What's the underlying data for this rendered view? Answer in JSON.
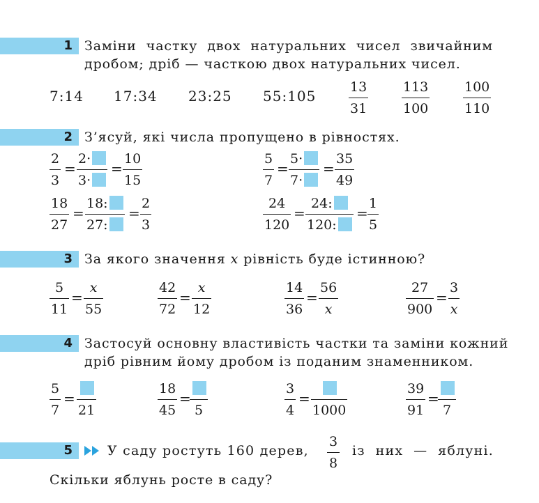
{
  "tasks": [
    {
      "number": "1",
      "lines": [
        "Заміни частку двох натуральних чисел звичайним",
        "дробом; дріб — часткою двох натуральних чисел."
      ],
      "ratios": [
        "7:14",
        "17:34",
        "23:25",
        "55:105"
      ],
      "fractions": [
        {
          "num": "13",
          "den": "31"
        },
        {
          "num": "113",
          "den": "100"
        },
        {
          "num": "100",
          "den": "110"
        }
      ]
    },
    {
      "number": "2",
      "lines": [
        "З’ясуй, які числа пропущено в рівностях."
      ],
      "equations": [
        {
          "a_num": "2",
          "a_den": "3",
          "m_num": "2·",
          "m_den": "3·",
          "b_num": "10",
          "b_den": "15"
        },
        {
          "a_num": "5",
          "a_den": "7",
          "m_num": "5·",
          "m_den": "7·",
          "b_num": "35",
          "b_den": "49"
        },
        {
          "a_num": "18",
          "a_den": "27",
          "m_num": "18:",
          "m_den": "27:",
          "b_num": "2",
          "b_den": "3"
        },
        {
          "a_num": "24",
          "a_den": "120",
          "m_num": "24:",
          "m_den": "120:",
          "b_num": "1",
          "b_den": "5"
        }
      ]
    },
    {
      "number": "3",
      "text_before": "За якого значення ",
      "variable": "x",
      "text_after": " рівність буде істинною?",
      "equations": [
        {
          "a_num": "5",
          "a_den": "11",
          "b_num": "x",
          "b_den": "55"
        },
        {
          "a_num": "42",
          "a_den": "72",
          "b_num": "x",
          "b_den": "12"
        },
        {
          "a_num": "14",
          "a_den": "36",
          "b_num": "56",
          "b_den": "x"
        },
        {
          "a_num": "27",
          "a_den": "900",
          "b_num": "3",
          "b_den": "x"
        }
      ]
    },
    {
      "number": "4",
      "lines": [
        "Застосуй основну властивість частки та заміни кожний",
        "дріб рівним йому дробом із поданим знаменником."
      ],
      "equations": [
        {
          "a_num": "5",
          "a_den": "7",
          "b_den": "21"
        },
        {
          "a_num": "18",
          "a_den": "45",
          "b_den": "5"
        },
        {
          "a_num": "3",
          "a_den": "4",
          "b_den": "1000"
        },
        {
          "a_num": "39",
          "a_den": "91",
          "b_den": "7"
        }
      ]
    },
    {
      "number": "5",
      "text_before": "У саду ростуть 160 дерев,",
      "fraction": {
        "num": "3",
        "den": "8"
      },
      "text_after": "із них — яблуні.",
      "line2": "Скільки яблунь росте в саду?"
    }
  ],
  "equals_sign": "=",
  "colors": {
    "accent": "#8fd3f0",
    "arrow": "#2aa3de",
    "text": "#1a1a1a"
  },
  "icons": {
    "double_arrow": "double-chevron-right-icon"
  }
}
